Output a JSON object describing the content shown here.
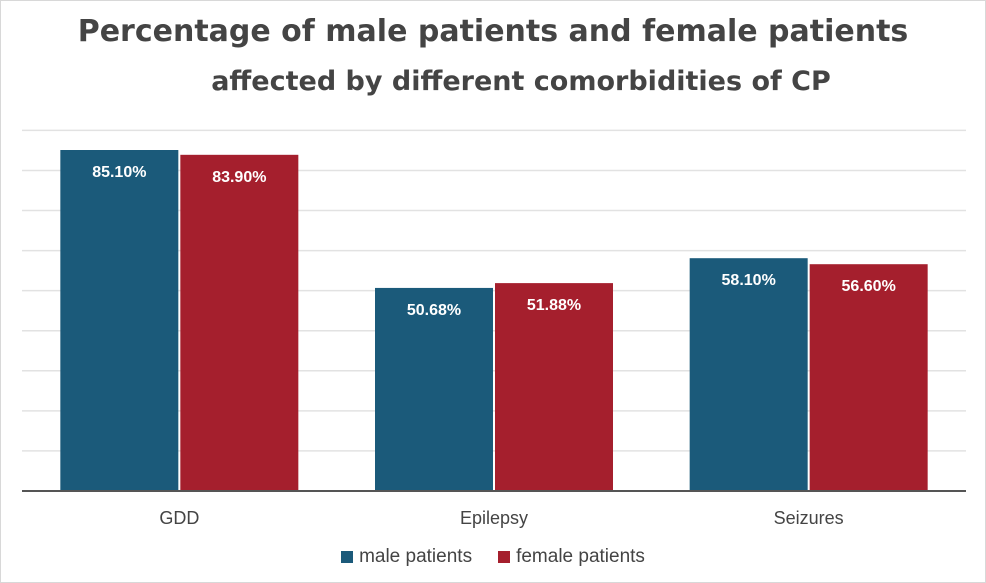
{
  "chart_data": {
    "type": "bar",
    "title": "Percentage of male patients and female patients",
    "subtitle": "affected by different comorbidities of CP",
    "categories": [
      "GDD",
      "Epilepsy",
      "Seizures"
    ],
    "series": [
      {
        "name": "male patients",
        "values": [
          85.1,
          50.68,
          58.1
        ],
        "labels": [
          "85.10%",
          "50.68%",
          "58.10%"
        ],
        "color": "#1b5a7a"
      },
      {
        "name": "female patients",
        "values": [
          83.9,
          51.88,
          56.6
        ],
        "labels": [
          "83.90%",
          "51.88%",
          "56.60%"
        ],
        "color": "#a51f2d"
      }
    ],
    "xlabel": "",
    "ylabel": "",
    "ylim": [
      0,
      90
    ],
    "y_tick_step": 10,
    "y_tick_labels_shown": false,
    "grid": true,
    "legend_position": "bottom"
  }
}
